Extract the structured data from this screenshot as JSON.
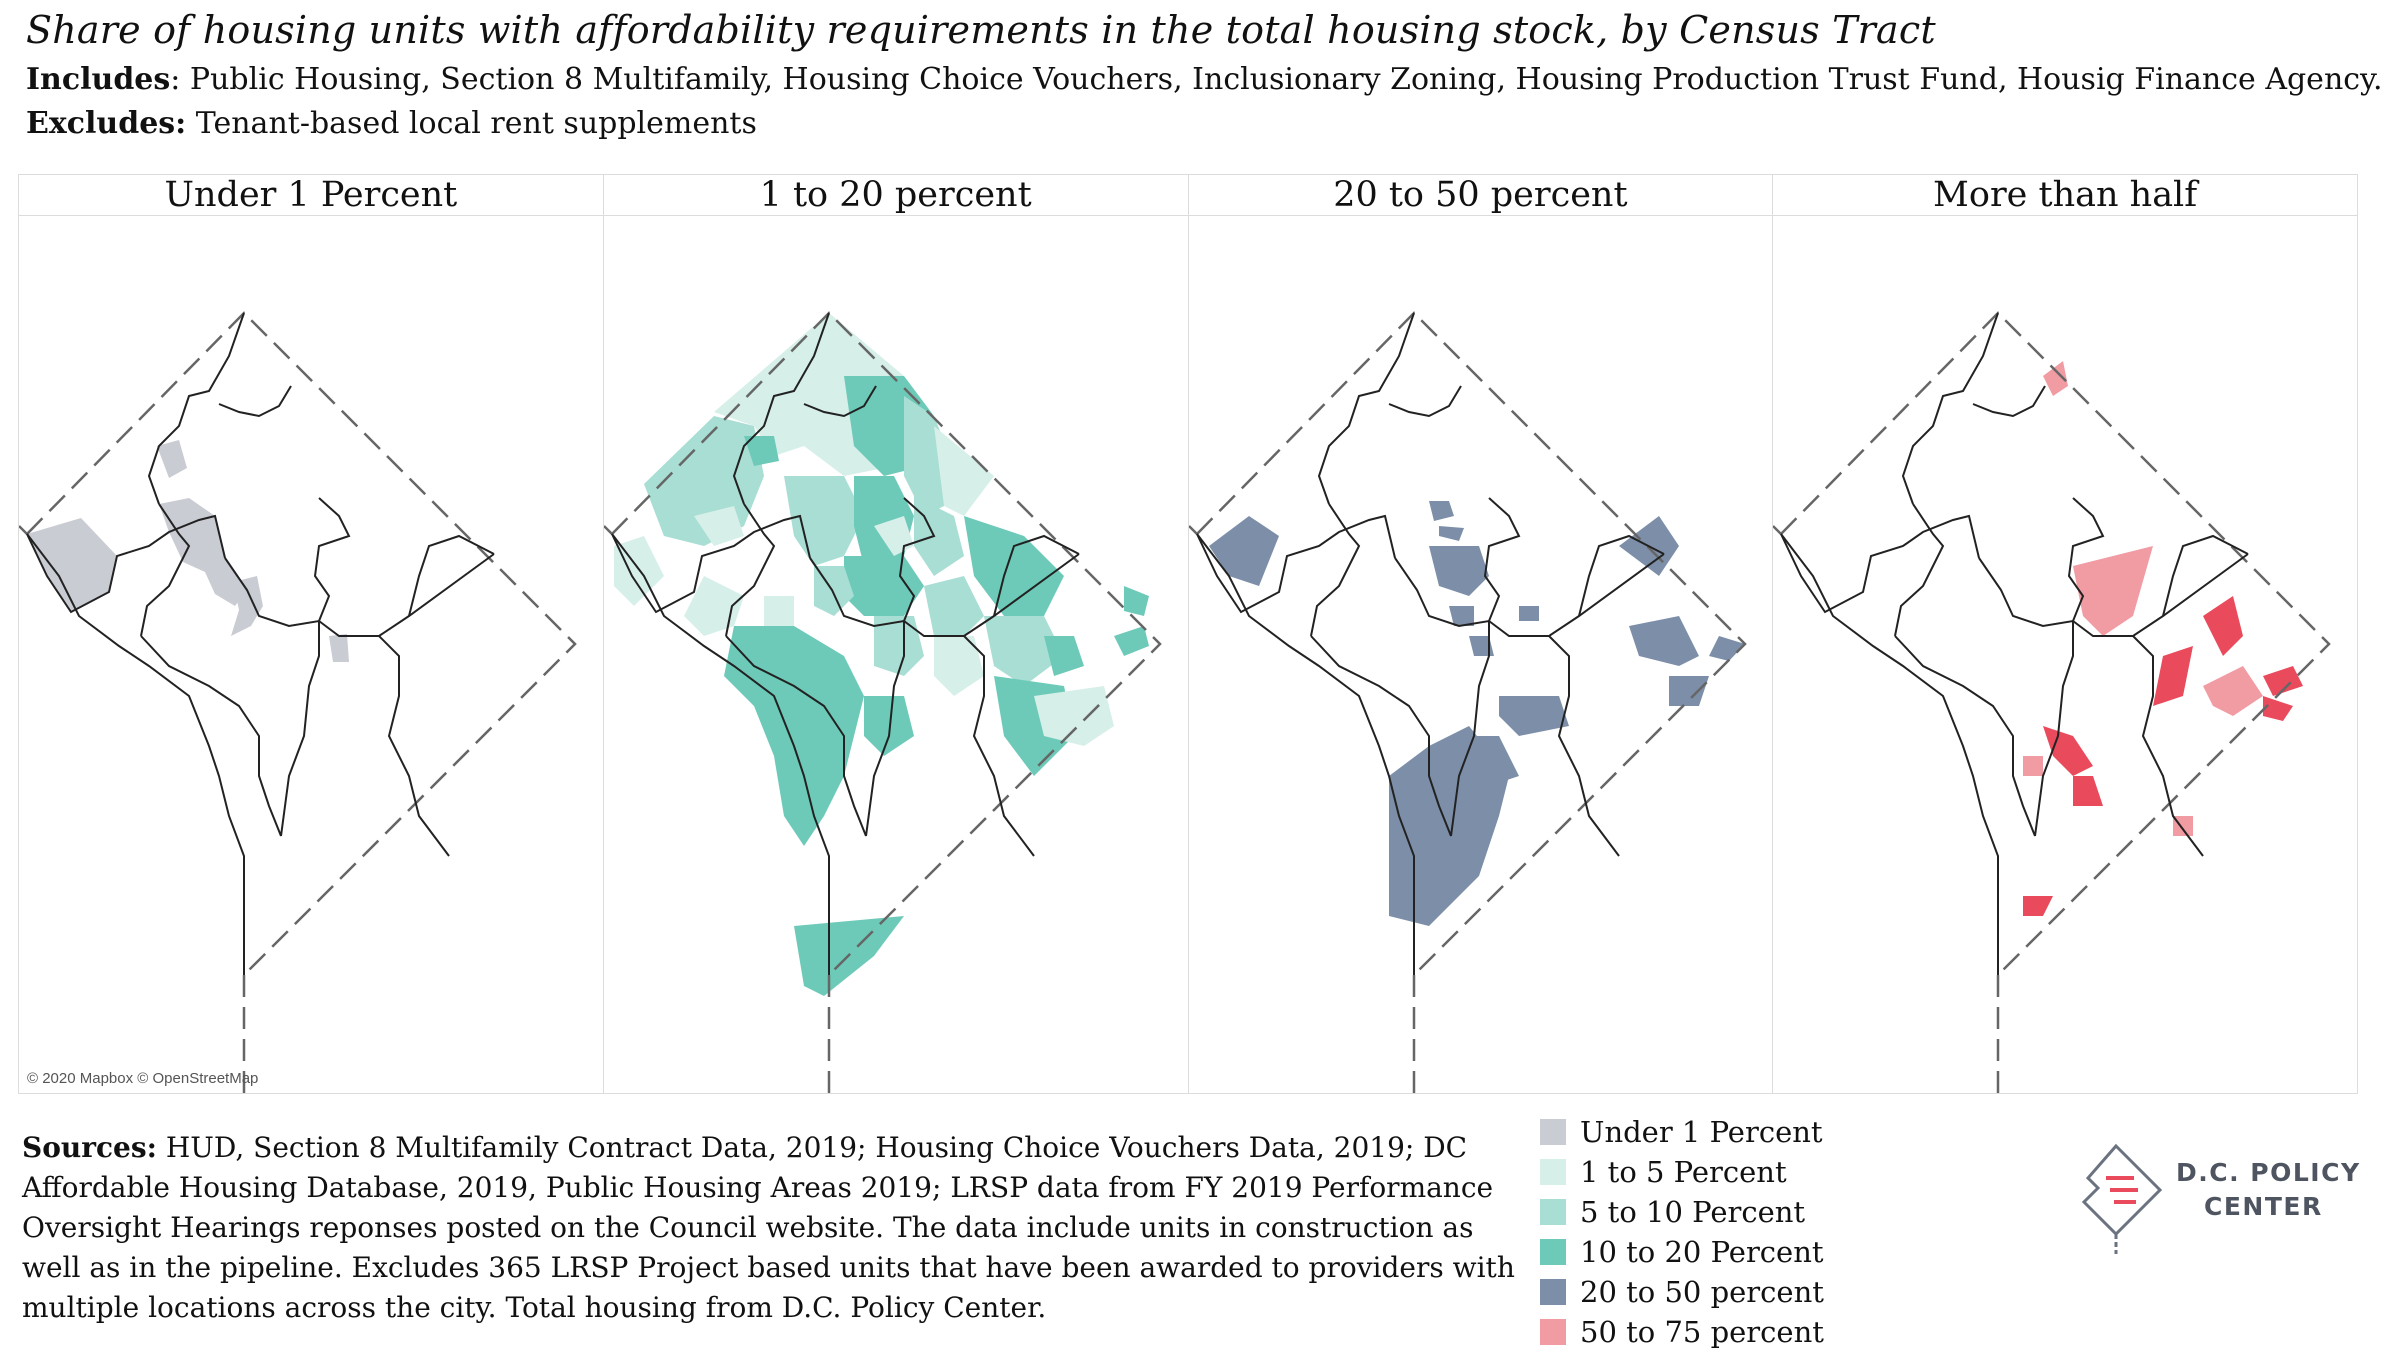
{
  "header": {
    "title": "Share of housing units with affordability requirements in the total housing stock, by Census Tract",
    "includes_label": "Includes",
    "includes_text": ": Public Housing, Section 8 Multifamily, Housing Choice Vouchers, Inclusionary Zoning, Housing Production Trust Fund, Housig Finance Agency.",
    "excludes_label": "Excludes:",
    "excludes_text": " Tenant-based local rent supplements"
  },
  "panels": [
    {
      "title": "Under 1 Percent"
    },
    {
      "title": "1 to 20 percent"
    },
    {
      "title": "20 to 50 percent"
    },
    {
      "title": "More than half"
    }
  ],
  "attribution": "© 2020 Mapbox © OpenStreetMap",
  "sources": {
    "label": "Sources:",
    "text": " HUD, Section 8 Multifamily Contract Data, 2019; Housing Choice Vouchers Data, 2019; DC Affordable Housing Database, 2019, Public Housing Areas 2019; LRSP data from FY 2019 Performance Oversight Hearings reponses posted on the Council website. The data include units in construction as well as in the pipeline. Excludes 365 LRSP Project based units that have been awarded to providers with multiple locations across the city. Total housing from D.C. Policy Center."
  },
  "legend": [
    {
      "label": "Under 1 Percent",
      "color": "#c9ccd3"
    },
    {
      "label": "1 to 5 Percent",
      "color": "#d6efe9"
    },
    {
      "label": "5 to 10 Percent",
      "color": "#a8ded3"
    },
    {
      "label": "10 to 20 Percent",
      "color": "#6dcab8"
    },
    {
      "label": "20 to 50 percent",
      "color": "#7d8fa8"
    },
    {
      "label": "50 to 75 percent",
      "color": "#f19ba3"
    }
  ],
  "logo": {
    "line1": "D.C. POLICY",
    "line2": "CENTER",
    "icon": "dc-map-document-icon"
  }
}
